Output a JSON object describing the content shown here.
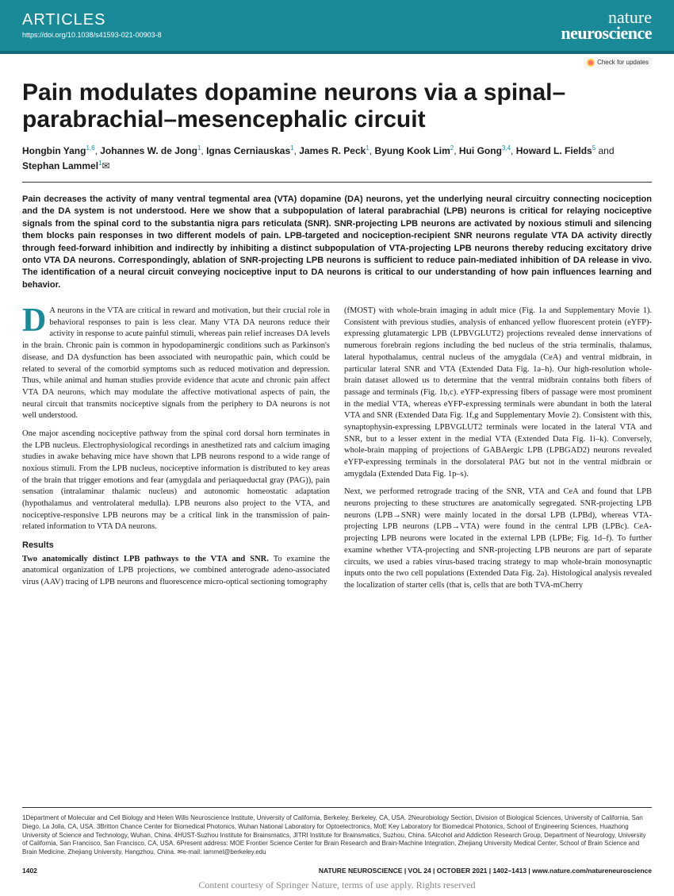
{
  "header": {
    "section_label": "ARTICLES",
    "doi_url": "https://doi.org/10.1038/s41593-021-00903-8",
    "journal_line1": "nature",
    "journal_line2": "neuroscience",
    "check_updates": "Check for updates"
  },
  "title": "Pain modulates dopamine neurons via a spinal–parabrachial–mesencephalic circuit",
  "authors_html": "<b>Hongbin Yang</b><sup>1,6</sup>, <b>Johannes W. de Jong</b><sup>1</sup>, <b>Ignas Cerniauskas</b><sup>1</sup>, <b>James R. Peck</b><sup>1</sup>, <b>Byung Kook Lim</b><sup>2</sup>, <b>Hui Gong</b><sup>3,4</sup>, <b>Howard L. Fields</b><sup>5</sup> and <b>Stephan Lammel</b><sup>1</sup>✉",
  "abstract": "Pain decreases the activity of many ventral tegmental area (VTA) dopamine (DA) neurons, yet the underlying neural circuitry connecting nociception and the DA system is not understood. Here we show that a subpopulation of lateral parabrachial (LPB) neurons is critical for relaying nociceptive signals from the spinal cord to the substantia nigra pars reticulata (SNR). SNR-projecting LPB neurons are activated by noxious stimuli and silencing them blocks pain responses in two different models of pain. LPB-targeted and nociception-recipient SNR neurons regulate VTA DA activity directly through feed-forward inhibition and indirectly by inhibiting a distinct subpopulation of VTA-projecting LPB neurons thereby reducing excitatory drive onto VTA DA neurons. Correspondingly, ablation of SNR-projecting LPB neurons is sufficient to reduce pain-mediated inhibition of DA release in vivo. The identification of a neural circuit conveying nociceptive input to DA neurons is critical to our understanding of how pain influences learning and behavior.",
  "body": {
    "col1": {
      "p1_dropcap": "D",
      "p1": "A neurons in the VTA are critical in reward and motivation, but their crucial role in behavioral responses to pain is less clear. Many VTA DA neurons reduce their activity in response to acute painful stimuli, whereas pain relief increases DA levels in the brain. Chronic pain is common in hypodopaminergic conditions such as Parkinson's disease, and DA dysfunction has been associated with neuropathic pain, which could be related to several of the comorbid symptoms such as reduced motivation and depression. Thus, while animal and human studies provide evidence that acute and chronic pain affect VTA DA neurons, which may modulate the affective motivational aspects of pain, the neural circuit that transmits nociceptive signals from the periphery to DA neurons is not well understood.",
      "p2": "One major ascending nociceptive pathway from the spinal cord dorsal horn terminates in the LPB nucleus. Electrophysiological recordings in anesthetized rats and calcium imaging studies in awake behaving mice have shown that LPB neurons respond to a wide range of noxious stimuli. From the LPB nucleus, nociceptive information is distributed to key areas of the brain that trigger emotions and fear (amygdala and periaqueductal gray (PAG)), pain sensation (intralaminar thalamic nucleus) and autonomic homeostatic adaptation (hypothalamus and ventrolateral medulla). LPB neurons also project to the VTA, and nociceptive-responsive LPB neurons may be a critical link in the transmission of pain-related information to VTA DA neurons.",
      "results_heading": "Results",
      "subsection1": "Two anatomically distinct LPB pathways to the VTA and SNR.",
      "p3": "To examine the anatomical organization of LPB projections, we combined anterograde adeno-associated virus (AAV) tracing of LPB neurons and fluorescence micro-optical sectioning tomography"
    },
    "col2": {
      "p1": "(fMOST) with whole-brain imaging in adult mice (Fig. 1a and Supplementary Movie 1). Consistent with previous studies, analysis of enhanced yellow fluorescent protein (eYFP)-expressing glutamatergic LPB (LPBVGLUT2) projections revealed dense innervations of numerous forebrain regions including the bed nucleus of the stria terminalis, thalamus, lateral hypothalamus, central nucleus of the amygdala (CeA) and ventral midbrain, in particular lateral SNR and VTA (Extended Data Fig. 1a–h). Our high-resolution whole-brain dataset allowed us to determine that the ventral midbrain contains both fibers of passage and terminals (Fig. 1b,c). eYFP-expressing fibers of passage were most prominent in the medial VTA, whereas eYFP-expressing terminals were abundant in both the lateral VTA and SNR (Extended Data Fig. 1f,g and Supplementary Movie 2). Consistent with this, synaptophysin-expressing LPBVGLUT2 terminals were located in the lateral VTA and SNR, but to a lesser extent in the medial VTA (Extended Data Fig. 1i–k). Conversely, whole-brain mapping of projections of GABAergic LPB (LPBGAD2) neurons revealed eYFP-expressing terminals in the dorsolateral PAG but not in the ventral midbrain or amygdala (Extended Data Fig. 1p–s).",
      "p2": "Next, we performed retrograde tracing of the SNR, VTA and CeA and found that LPB neurons projecting to these structures are anatomically segregated. SNR-projecting LPB neurons (LPB→SNR) were mainly located in the dorsal LPB (LPBd), whereas VTA-projecting LPB neurons (LPB→VTA) were found in the central LPB (LPBc). CeA-projecting LPB neurons were located in the external LPB (LPBe; Fig. 1d–f). To further examine whether VTA-projecting and SNR-projecting LPB neurons are part of separate circuits, we used a rabies virus-based tracing strategy to map whole-brain monosynaptic inputs onto the two cell populations (Extended Data Fig. 2a). Histological analysis revealed the localization of starter cells (that is, cells that are both TVA-mCherry"
    }
  },
  "affiliations": "1Department of Molecular and Cell Biology and Helen Wills Neuroscience Institute, University of California, Berkeley, Berkeley, CA, USA. 2Neurobiology Section, Division of Biological Sciences, University of California, San Diego, La Jolla, CA, USA. 3Britton Chance Center for Biomedical Photonics, Wuhan National Laboratory for Optoelectronics, MoE Key Laboratory for Biomedical Photonics, School of Engineering Sciences, Huazhong University of Science and Technology, Wuhan, China. 4HUST-Suzhou Institute for Brainsmatics, JITRI Institute for Brainsmatics, Suzhou, China. 5Alcohol and Addiction Research Group, Department of Neurology, University of California, San Francisco, San Francisco, CA, USA. 6Present address: MOE Frontier Science Center for Brain Research and Brain-Machine Integration, Zhejiang University Medical Center, School of Brain Science and Brain Medicine, Zhejiang University, Hangzhou, China. ✉e-mail: lammel@berkeley.edu",
  "footer": {
    "page_number": "1402",
    "citation": "NATURE NEUROSCIENCE | VOL 24 | OCTOBER 2021 | 1402–1413 | www.nature.com/natureneuroscience",
    "courtesy": "Content courtesy of Springer Nature, terms of use apply. Rights reserved"
  },
  "colors": {
    "brand_teal": "#1a8a99",
    "brand_teal_dark": "#126c79",
    "text": "#1a1a1a",
    "ref_link": "#1a8a99"
  }
}
